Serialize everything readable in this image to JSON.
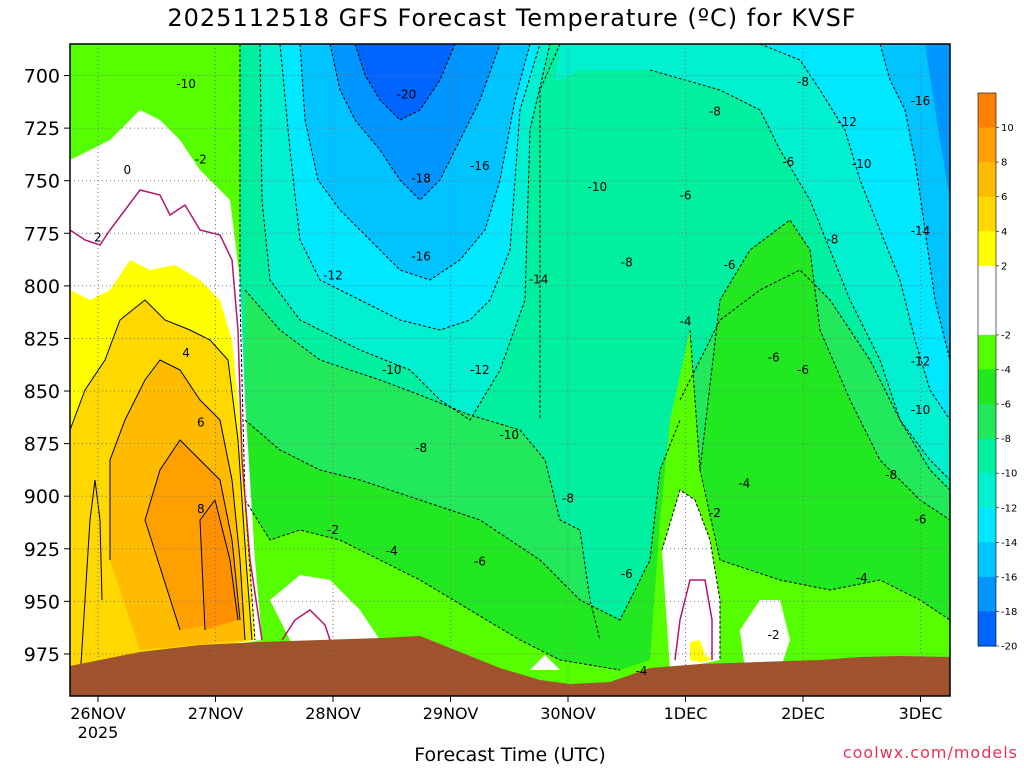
{
  "title": "2025112518 GFS Forecast Temperature (ºC) for KVSF",
  "xlabel": "Forecast Time (UTC)",
  "credit": "coolwx.com/models",
  "colors": {
    "credit": "#e6325a",
    "ground": "#a0522d",
    "zeroline": "#b4146e",
    "contour_line": "#000000"
  },
  "chart_data": {
    "type": "heatmap",
    "title": "2025112518 GFS Forecast Temperature (ºC) for KVSF",
    "xlabel": "Forecast Time (UTC)",
    "ylabel": "",
    "x_ticks": [
      "26NOV",
      "27NOV",
      "28NOV",
      "29NOV",
      "30NOV",
      "1DEC",
      "2DEC",
      "3DEC"
    ],
    "x_tick_sublabel": "2025",
    "y_ticks": [
      700,
      725,
      750,
      775,
      800,
      825,
      850,
      875,
      900,
      925,
      950,
      975
    ],
    "y_range_hpa": [
      685,
      995
    ],
    "y_axis_inverted": true,
    "grid": true,
    "legend_placement": "right",
    "colorbar": [
      {
        "label": "10",
        "color": "#ff8000"
      },
      {
        "label": "8",
        "color": "#ffa000"
      },
      {
        "label": "6",
        "color": "#ffbb00"
      },
      {
        "label": "4",
        "color": "#ffd800"
      },
      {
        "label": "2",
        "color": "#ffff00"
      },
      {
        "label": "",
        "color": "#ffffff"
      },
      {
        "label": "-2",
        "color": "#ffffff"
      },
      {
        "label": "-4",
        "color": "#55ff00"
      },
      {
        "label": "-6",
        "color": "#22e822"
      },
      {
        "label": "-8",
        "color": "#22e85c"
      },
      {
        "label": "-10",
        "color": "#00f0a0"
      },
      {
        "label": "-12",
        "color": "#00f0d0"
      },
      {
        "label": "-14",
        "color": "#00e8ff"
      },
      {
        "label": "-16",
        "color": "#00c4ff"
      },
      {
        "label": "-18",
        "color": "#0096ff"
      },
      {
        "label": "-20",
        "color": "#0064ff"
      }
    ],
    "contour_labels": [
      {
        "text": "-10",
        "time": "26NOV18",
        "p": 704
      },
      {
        "text": "-20",
        "time": "28NOV15",
        "p": 709
      },
      {
        "text": "-16",
        "time": "29NOV06",
        "p": 743
      },
      {
        "text": "-18",
        "time": "28NOV18",
        "p": 749
      },
      {
        "text": "-10",
        "time": "30NOV06",
        "p": 753
      },
      {
        "text": "-8",
        "time": "2DEC00",
        "p": 703
      },
      {
        "text": "-8",
        "time": "1DEC06",
        "p": 717
      },
      {
        "text": "-12",
        "time": "2DEC09",
        "p": 722
      },
      {
        "text": "-16",
        "time": "3DEC00",
        "p": 712
      },
      {
        "text": "-6",
        "time": "1DEC00",
        "p": 757
      },
      {
        "text": "-6",
        "time": "1DEC21",
        "p": 741
      },
      {
        "text": "-10",
        "time": "2DEC12",
        "p": 742
      },
      {
        "text": "-14",
        "time": "3DEC00",
        "p": 774
      },
      {
        "text": "-16",
        "time": "28NOV18",
        "p": 786
      },
      {
        "text": "-8",
        "time": "30NOV12",
        "p": 789
      },
      {
        "text": "-6",
        "time": "1DEC09",
        "p": 790
      },
      {
        "text": "-8",
        "time": "2DEC06",
        "p": 778
      },
      {
        "text": "-12",
        "time": "28NOV00",
        "p": 795
      },
      {
        "text": "-14",
        "time": "29NOV18",
        "p": 797
      },
      {
        "text": "-4",
        "time": "1DEC00",
        "p": 817
      },
      {
        "text": "-6",
        "time": "1DEC18",
        "p": 834
      },
      {
        "text": "-6",
        "time": "2DEC00",
        "p": 840
      },
      {
        "text": "-12",
        "time": "3DEC00",
        "p": 836
      },
      {
        "text": "-10",
        "time": "28NOV12",
        "p": 840
      },
      {
        "text": "-12",
        "time": "29NOV06",
        "p": 840
      },
      {
        "text": "-10",
        "time": "3DEC00",
        "p": 859
      },
      {
        "text": "-10",
        "time": "29NOV12",
        "p": 871
      },
      {
        "text": "-8",
        "time": "28NOV18",
        "p": 877
      },
      {
        "text": "-8",
        "time": "2DEC18",
        "p": 890
      },
      {
        "text": "-4",
        "time": "1DEC12",
        "p": 894
      },
      {
        "text": "-8",
        "time": "30NOV00",
        "p": 901
      },
      {
        "text": "-2",
        "time": "1DEC06",
        "p": 908
      },
      {
        "text": "-6",
        "time": "3DEC00",
        "p": 911
      },
      {
        "text": "-2",
        "time": "28NOV00",
        "p": 916
      },
      {
        "text": "-4",
        "time": "28NOV12",
        "p": 926
      },
      {
        "text": "-6",
        "time": "29NOV06",
        "p": 931
      },
      {
        "text": "-6",
        "time": "30NOV12",
        "p": 937
      },
      {
        "text": "-4",
        "time": "2DEC12",
        "p": 939
      },
      {
        "text": "-2",
        "time": "1DEC18",
        "p": 966
      },
      {
        "text": "-4",
        "time": "30NOV15",
        "p": 983
      },
      {
        "text": "0",
        "time": "26NOV06",
        "p": 745
      },
      {
        "text": "-2",
        "time": "26NOV21",
        "p": 740
      },
      {
        "text": "2",
        "time": "26NOV00",
        "p": 777
      },
      {
        "text": "4",
        "time": "26NOV18",
        "p": 832
      },
      {
        "text": "6",
        "time": "26NOV21",
        "p": 865
      },
      {
        "text": "8",
        "time": "26NOV21",
        "p": 906
      }
    ]
  }
}
